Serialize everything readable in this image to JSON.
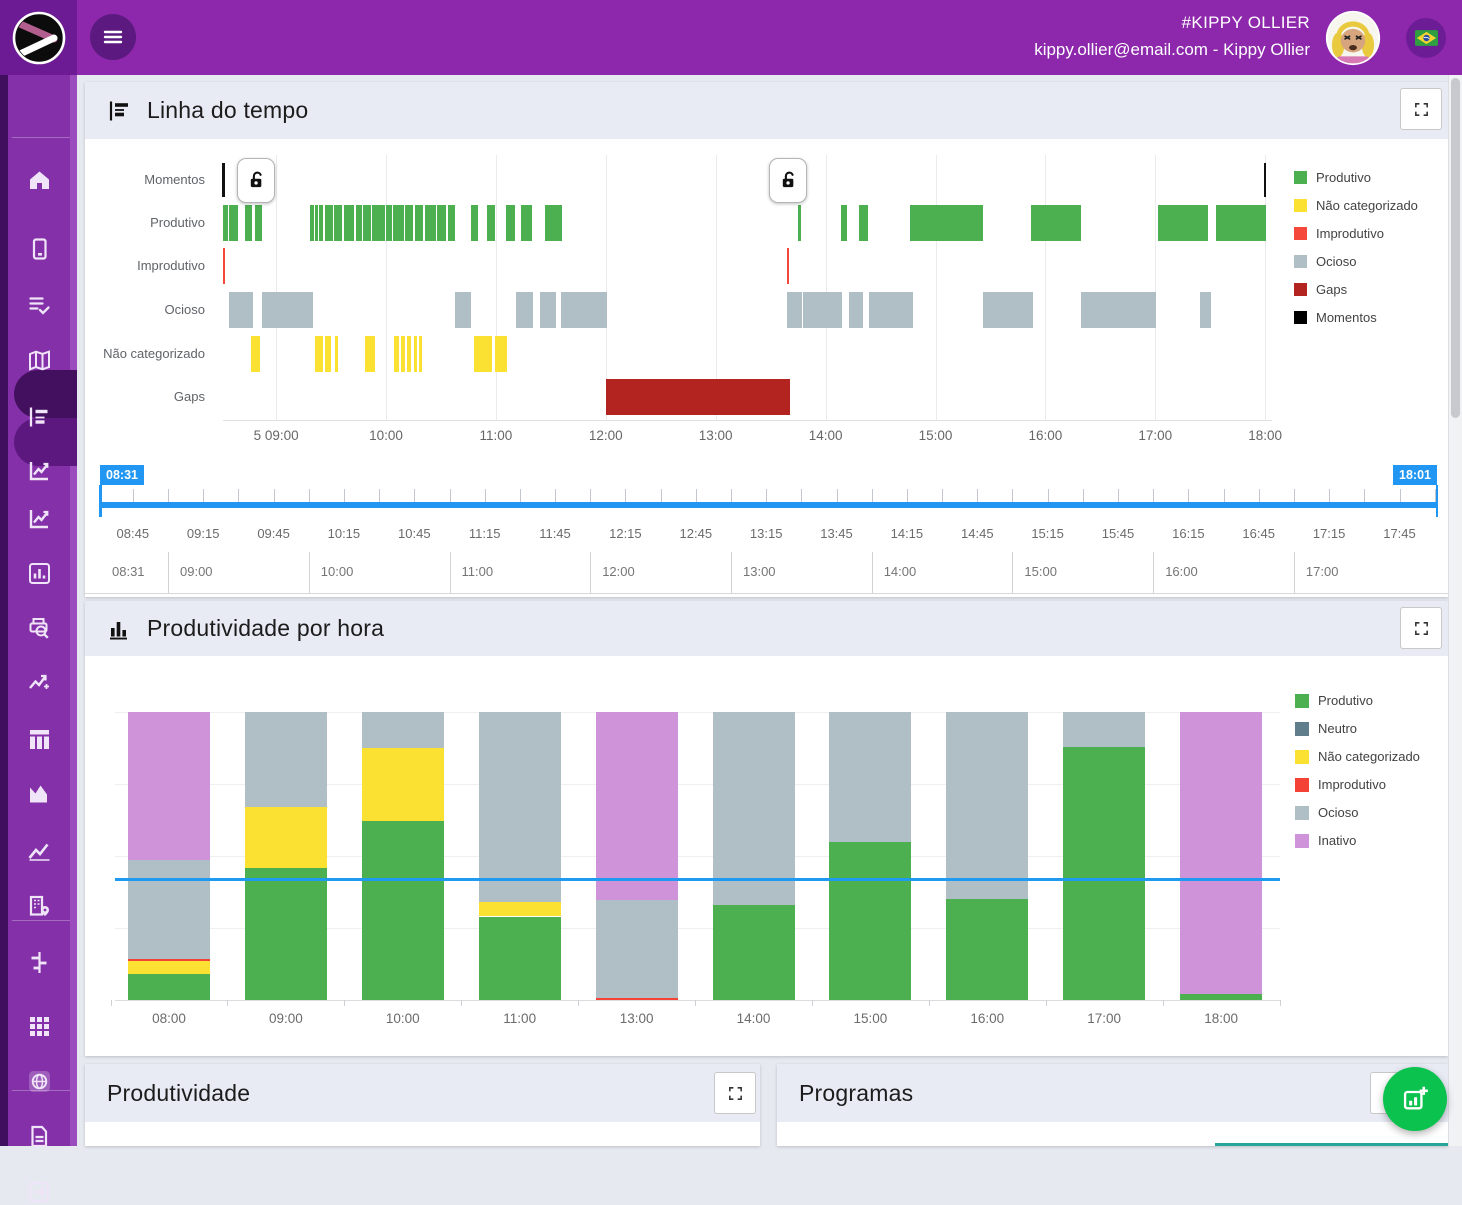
{
  "topbar": {
    "team": "#KIPPY OLLIER",
    "user": "kippy.ollier@email.com - Kippy Ollier",
    "icons": [
      "brand-logo",
      "hamburger-menu-icon",
      "avatar",
      "brazil-flag-icon"
    ]
  },
  "sidebar": {
    "icons": [
      "home",
      "kiosk",
      "task-list",
      "map",
      "timeline",
      "chart-line-reports",
      "chart-line-reports-alt",
      "bar-chart",
      "print-search",
      "trend-sparkle",
      "columns-dashboard",
      "area-chart",
      "line-chart",
      "company-location",
      "tune-filters",
      "apps-grid",
      "web-globe",
      "document",
      "exit-logout"
    ]
  },
  "panels": {
    "timeline": {
      "title": "Linha do tempo"
    },
    "hourly": {
      "title": "Produtividade por hora"
    },
    "productivity": {
      "title": "Produtividade"
    },
    "programs": {
      "title": "Programas"
    }
  },
  "timeline_slider": {
    "start": "08:31",
    "end": "18:01",
    "accent": "#2196f3",
    "range_minutes": 570,
    "tick_labels": [
      "08:45",
      "09:15",
      "09:45",
      "10:15",
      "10:45",
      "11:15",
      "11:45",
      "12:15",
      "12:45",
      "13:15",
      "13:45",
      "14:15",
      "14:45",
      "15:15",
      "15:45",
      "16:15",
      "16:45",
      "17:15",
      "17:45"
    ],
    "context_labels": [
      "08:31",
      "09:00",
      "10:00",
      "11:00",
      "12:00",
      "13:00",
      "14:00",
      "15:00",
      "16:00",
      "17:00"
    ]
  },
  "chart_data": [
    {
      "type": "timeline",
      "title": "Linha do tempo",
      "x_start": "08:31",
      "x_end": "18:01",
      "x_ticks": [
        "5 09:00",
        "10:00",
        "11:00",
        "12:00",
        "13:00",
        "14:00",
        "15:00",
        "16:00",
        "17:00",
        "18:00"
      ],
      "x_tick_hours": [
        9,
        10,
        11,
        12,
        13,
        14,
        15,
        16,
        17,
        18
      ],
      "rows": [
        "Momentos",
        "Produtivo",
        "Improdutivo",
        "Ocioso",
        "Não categorizado",
        "Gaps"
      ],
      "colors": {
        "Produtivo": "#4caf50",
        "Não categorizado": "#fbe232",
        "Improdutivo": "#f4483b",
        "Ocioso": "#b0bec5",
        "Gaps": "#b32421",
        "Momentos": "#000000"
      },
      "legend": [
        "Produtivo",
        "Não categorizado",
        "Improdutivo",
        "Ocioso",
        "Gaps",
        "Momentos"
      ],
      "moment_marks_hours": [
        8.52,
        17.995
      ],
      "lock_marker_hours": [
        8.82,
        13.66
      ],
      "segments_hours": {
        "Produtivo": [
          [
            8.52,
            8.56
          ],
          [
            8.575,
            8.655
          ],
          [
            8.717,
            8.781
          ],
          [
            8.808,
            8.872
          ],
          [
            9.31,
            9.345
          ],
          [
            9.355,
            9.38
          ],
          [
            9.39,
            9.43
          ],
          [
            9.44,
            9.52
          ],
          [
            9.53,
            9.6
          ],
          [
            9.62,
            9.71
          ],
          [
            9.73,
            9.78
          ],
          [
            9.79,
            9.86
          ],
          [
            9.87,
            9.99
          ],
          [
            10.0,
            10.05
          ],
          [
            10.065,
            10.16
          ],
          [
            10.17,
            10.25
          ],
          [
            10.26,
            10.34
          ],
          [
            10.35,
            10.45
          ],
          [
            10.46,
            10.55
          ],
          [
            10.56,
            10.63
          ],
          [
            10.77,
            10.84
          ],
          [
            10.92,
            10.99
          ],
          [
            11.09,
            11.17
          ],
          [
            11.23,
            11.33
          ],
          [
            11.45,
            11.6
          ],
          [
            13.75,
            13.775
          ],
          [
            14.14,
            14.19
          ],
          [
            14.3,
            14.39
          ],
          [
            14.77,
            15.43
          ],
          [
            15.87,
            16.32
          ],
          [
            17.02,
            17.48
          ],
          [
            17.55,
            18.01
          ]
        ],
        "Improdutivo": [
          [
            8.515,
            8.54
          ],
          [
            13.645,
            13.665
          ]
        ],
        "Ocioso": [
          [
            8.57,
            8.79
          ],
          [
            8.875,
            9.34
          ],
          [
            10.63,
            10.77
          ],
          [
            11.18,
            11.34
          ],
          [
            11.405,
            11.55
          ],
          [
            11.59,
            12.01
          ],
          [
            13.65,
            13.785
          ],
          [
            13.795,
            14.15
          ],
          [
            14.21,
            14.34
          ],
          [
            14.39,
            14.79
          ],
          [
            15.43,
            15.885
          ],
          [
            16.32,
            17.01
          ],
          [
            17.41,
            17.51
          ]
        ],
        "Não categorizado": [
          [
            8.77,
            8.85
          ],
          [
            9.35,
            9.425
          ],
          [
            9.44,
            9.5
          ],
          [
            9.535,
            9.565
          ],
          [
            9.81,
            9.9
          ],
          [
            10.07,
            10.115
          ],
          [
            10.14,
            10.175
          ],
          [
            10.19,
            10.225
          ],
          [
            10.25,
            10.285
          ],
          [
            10.3,
            10.325
          ],
          [
            10.8,
            10.965
          ],
          [
            10.99,
            11.105
          ]
        ],
        "Gaps": [
          [
            12.0,
            13.68
          ]
        ]
      }
    },
    {
      "type": "bar",
      "stacked": true,
      "title": "Produtividade por hora",
      "unit": "percent_of_hour",
      "ylim": [
        0,
        100
      ],
      "categories": [
        "08:00",
        "09:00",
        "10:00",
        "11:00",
        "13:00",
        "14:00",
        "15:00",
        "16:00",
        "17:00",
        "18:00"
      ],
      "series": [
        {
          "name": "Produtivo",
          "color": "#4caf50",
          "values": [
            9,
            46,
            62,
            29,
            0,
            33,
            55,
            35,
            88,
            2
          ]
        },
        {
          "name": "Neutro",
          "color": "#607d8b",
          "values": [
            0,
            0,
            0,
            0,
            0,
            0,
            0,
            0,
            0,
            0
          ]
        },
        {
          "name": "Não categorizado",
          "color": "#fbe232",
          "values": [
            4.5,
            21,
            25.5,
            5,
            0,
            0,
            0,
            0,
            0,
            0
          ]
        },
        {
          "name": "Improdutivo",
          "color": "#f44336",
          "values": [
            0.7,
            0,
            0,
            0,
            0.8,
            0,
            0,
            0,
            0,
            0
          ]
        },
        {
          "name": "Ocioso",
          "color": "#b0bec5",
          "values": [
            34.3,
            33,
            12.5,
            66,
            34,
            67,
            45,
            65,
            12,
            0
          ]
        },
        {
          "name": "Inativo",
          "color": "#ce93d8",
          "values": [
            51.5,
            0,
            0,
            0,
            65.2,
            0,
            0,
            0,
            0,
            98
          ]
        }
      ],
      "average_line_pct": 42,
      "average_line_color": "#1e9bf0",
      "legend_position": "right"
    }
  ],
  "fab": {
    "icon": "add-chart-icon",
    "color": "#0cc24e"
  },
  "programs_accent_color": "#26a69a"
}
